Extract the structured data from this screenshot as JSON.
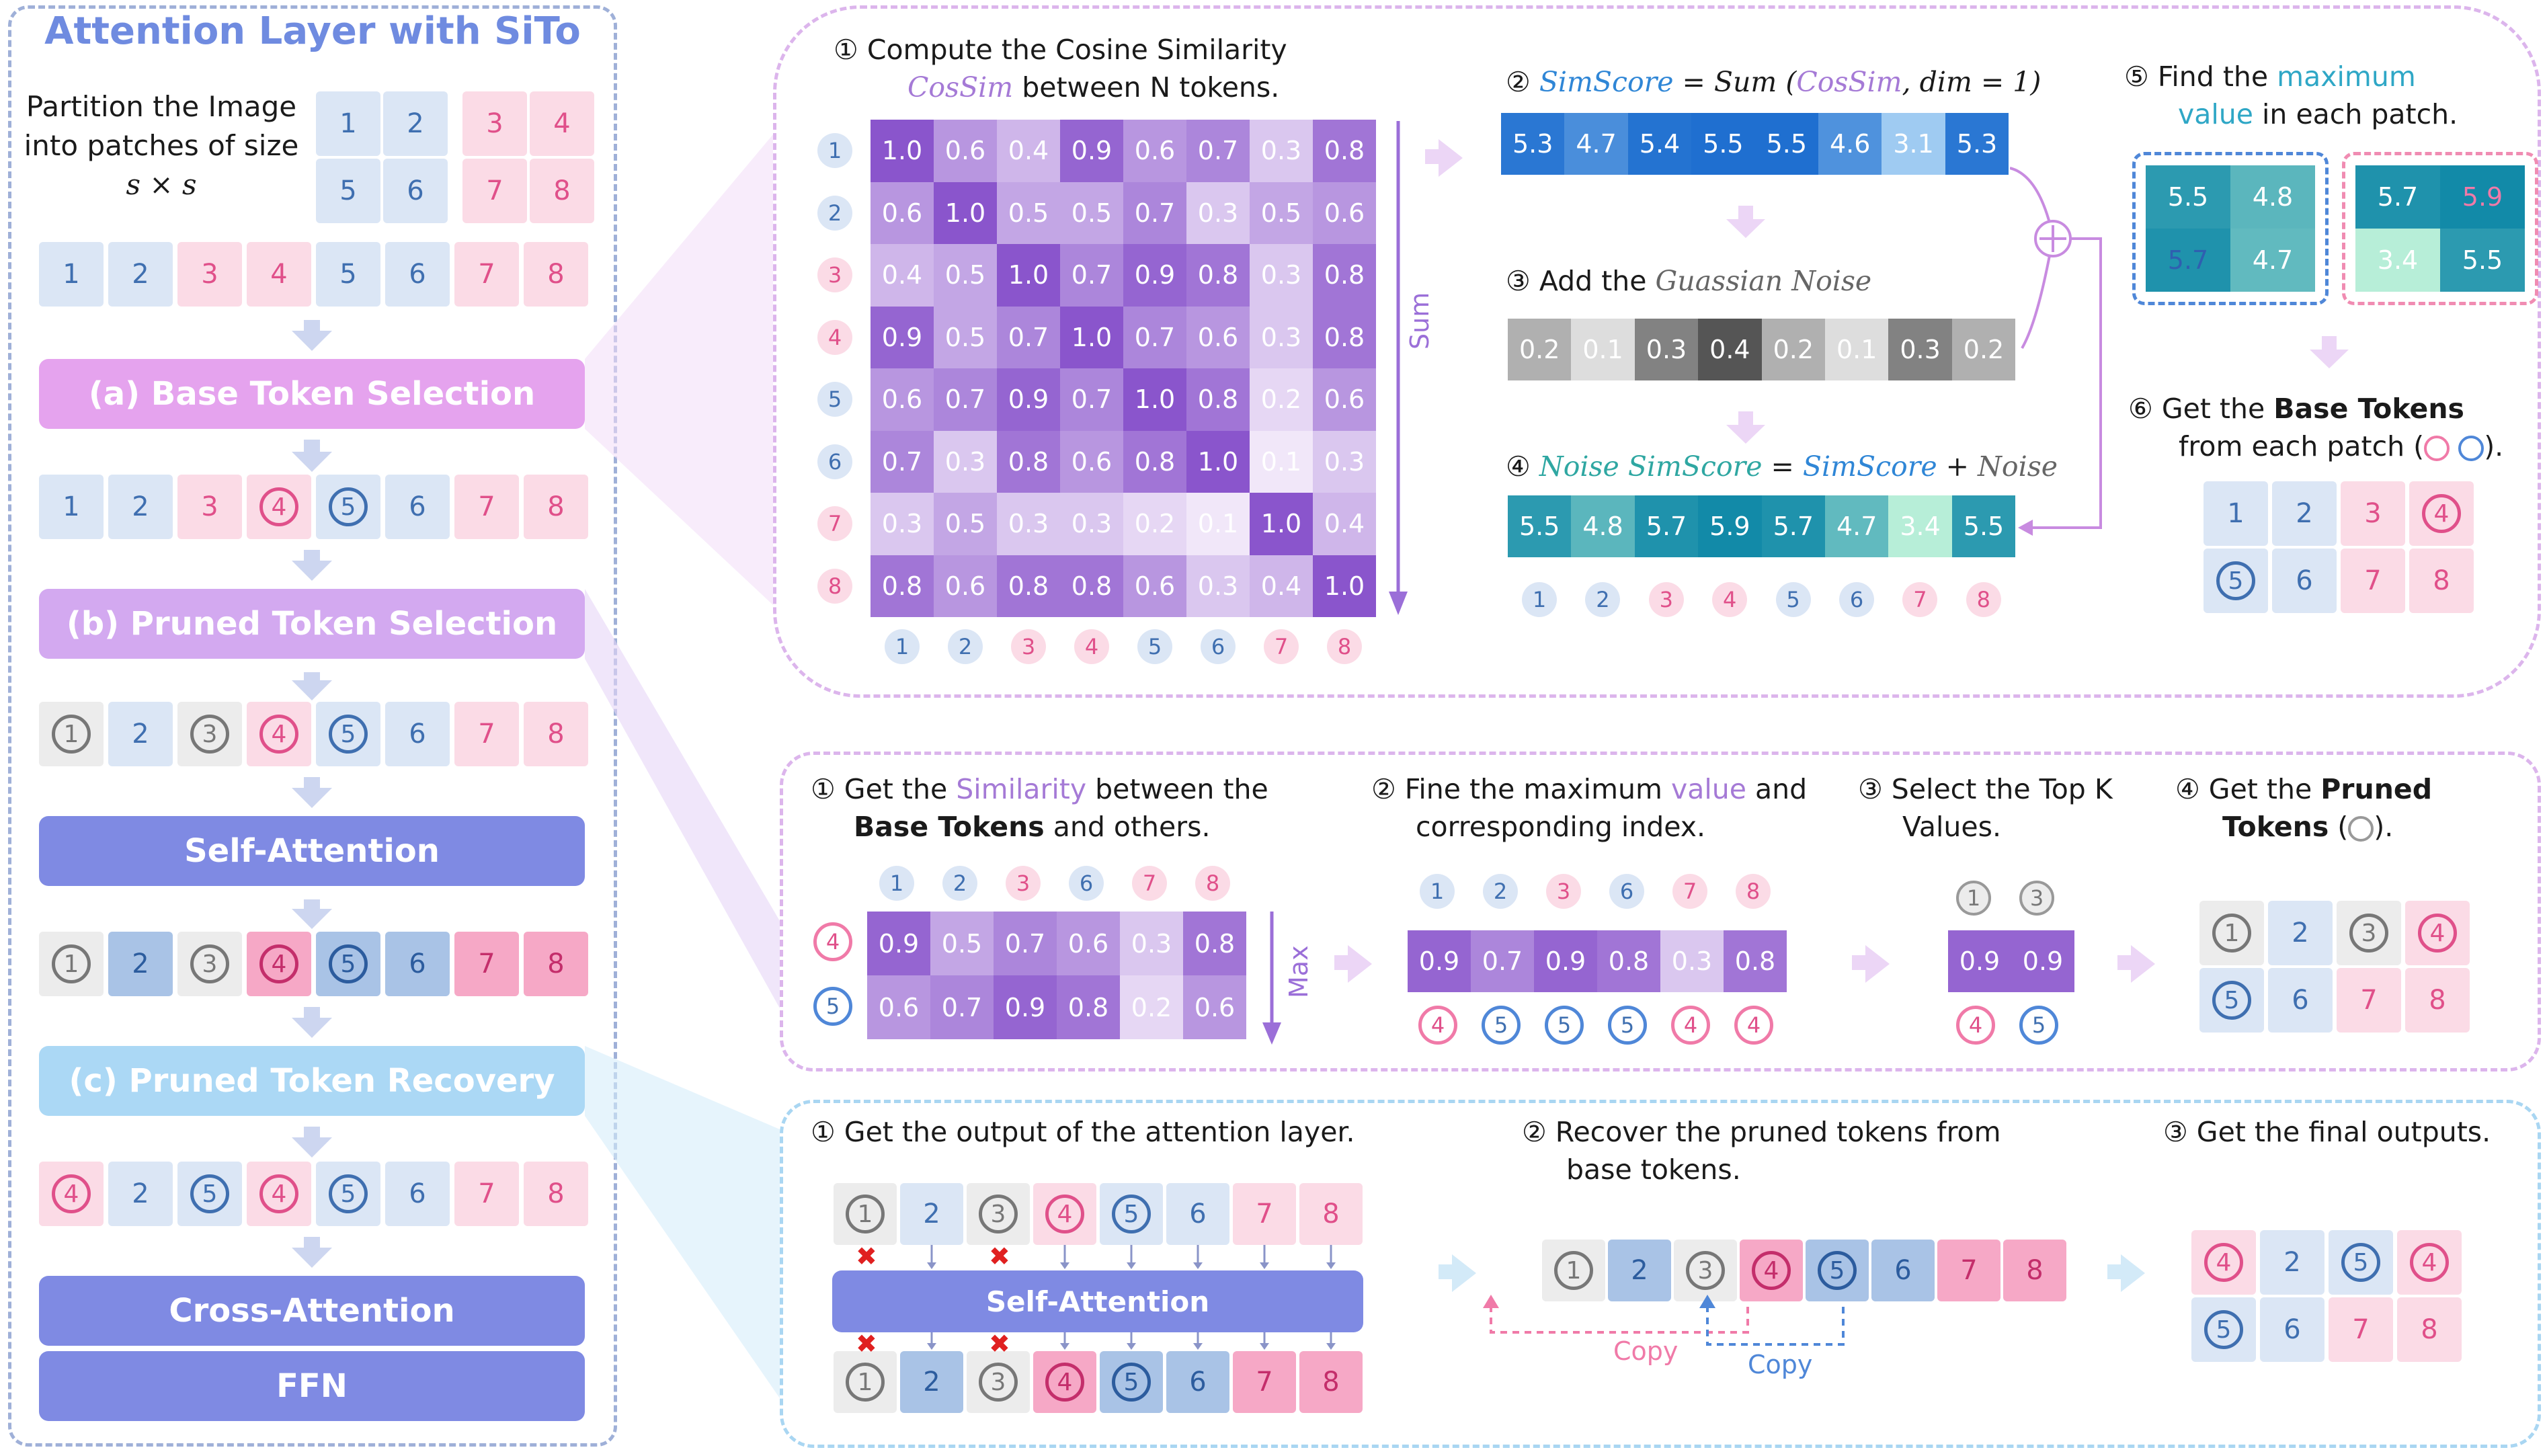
{
  "left": {
    "title": "Attention Layer with SiTo",
    "partition_line1": "Partition the Image",
    "partition_line2": "into patches of size",
    "partition_size": "s × s",
    "stage_a": "(a) Base Token Selection",
    "stage_b": "(b) Pruned Token Selection",
    "stage_self": "Self-Attention",
    "stage_c": "(c) Pruned Token Recovery",
    "stage_cross": "Cross-Attention",
    "stage_ffn": "FFN"
  },
  "tokens": [
    "1",
    "2",
    "3",
    "4",
    "5",
    "6",
    "7",
    "8"
  ],
  "base": {
    "step1_line1": "Compute the Cosine Similarity",
    "step1_cossim": "CosSim",
    "step1_line2": " between N tokens.",
    "sum_label": "Sum",
    "matrix": [
      [
        "1.0",
        "0.6",
        "0.4",
        "0.9",
        "0.6",
        "0.7",
        "0.3",
        "0.8"
      ],
      [
        "0.6",
        "1.0",
        "0.5",
        "0.5",
        "0.7",
        "0.3",
        "0.5",
        "0.6"
      ],
      [
        "0.4",
        "0.5",
        "1.0",
        "0.7",
        "0.9",
        "0.8",
        "0.3",
        "0.8"
      ],
      [
        "0.9",
        "0.5",
        "0.7",
        "1.0",
        "0.7",
        "0.6",
        "0.3",
        "0.8"
      ],
      [
        "0.6",
        "0.7",
        "0.9",
        "0.7",
        "1.0",
        "0.8",
        "0.2",
        "0.6"
      ],
      [
        "0.7",
        "0.3",
        "0.8",
        "0.6",
        "0.8",
        "1.0",
        "0.1",
        "0.3"
      ],
      [
        "0.3",
        "0.5",
        "0.3",
        "0.3",
        "0.2",
        "0.1",
        "1.0",
        "0.4"
      ],
      [
        "0.8",
        "0.6",
        "0.8",
        "0.8",
        "0.6",
        "0.3",
        "0.4",
        "1.0"
      ]
    ],
    "step2_simscore": "SimScore",
    "step2_eq": " = Sum (",
    "step2_cossim": "CosSim",
    "step2_tail": ", dim = 1)",
    "simscore": [
      "5.3",
      "4.7",
      "5.4",
      "5.5",
      "5.5",
      "4.6",
      "3.1",
      "5.3"
    ],
    "step3_text": "Add the ",
    "step3_noise": "Guassian Noise",
    "noise": [
      "0.2",
      "0.1",
      "0.3",
      "0.4",
      "0.2",
      "0.1",
      "0.3",
      "0.2"
    ],
    "step4_noise_sim": "Noise SimScore",
    "step4_eq": " = ",
    "step4_sim": "SimScore",
    "step4_plus": " + ",
    "step4_noise": "Noise",
    "noise_simscore": [
      "5.5",
      "4.8",
      "5.7",
      "5.9",
      "5.7",
      "4.7",
      "3.4",
      "5.5"
    ],
    "step5_line1a": "Find the ",
    "step5_max": "maximum",
    "step5_value": "value",
    "step5_line2b": " in each patch.",
    "patch_left": [
      "5.5",
      "4.8",
      "5.7",
      "4.7"
    ],
    "patch_right": [
      "5.7",
      "5.9",
      "3.4",
      "5.5"
    ],
    "step6_line1a": "Get the ",
    "step6_bold": "Base Tokens",
    "step6_line2": "from  each patch (",
    "step6_end": ").",
    "step_nums": [
      "①",
      "②",
      "③",
      "④",
      "⑤",
      "⑥"
    ]
  },
  "pruned": {
    "step1_a": "Get the ",
    "step1_sim": "Similarity",
    "step1_b": " between the",
    "step1_bold": "Base Tokens",
    "step1_c": " and others.",
    "cols": [
      "1",
      "2",
      "3",
      "6",
      "7",
      "8"
    ],
    "rows": [
      "4",
      "5"
    ],
    "matrix": [
      [
        "0.9",
        "0.5",
        "0.7",
        "0.6",
        "0.3",
        "0.8"
      ],
      [
        "0.6",
        "0.7",
        "0.9",
        "0.8",
        "0.2",
        "0.6"
      ]
    ],
    "max_label": "Max",
    "step2_a": "Fine the maximum ",
    "step2_value": "value",
    "step2_b": " and",
    "step2_line2": "corresponding index.",
    "max_values": [
      "0.9",
      "0.7",
      "0.9",
      "0.8",
      "0.3",
      "0.8"
    ],
    "max_index": [
      "4",
      "5",
      "5",
      "5",
      "4",
      "4"
    ],
    "step3_line1": "Select the Top K",
    "step3_line2": "Values.",
    "topk_cols": [
      "1",
      "3"
    ],
    "topk_values": [
      "0.9",
      "0.9"
    ],
    "topk_index": [
      "4",
      "5"
    ],
    "step4_a": "Get the ",
    "step4_bold1": "Pruned",
    "step4_bold2": "Tokens",
    "step4_end": ")."
  },
  "recovery": {
    "step1": "Get the output of the attention layer.",
    "self_attention": "Self-Attention",
    "step2_line1": "Recover the pruned tokens from",
    "step2_line2": "base tokens.",
    "copy1": "Copy",
    "copy2": "Copy",
    "step3": "Get the final outputs."
  },
  "colors": {
    "frame": "#7d8fc8",
    "stage_a": "#e5a3ee",
    "stage_b": "#d3a9f0",
    "stage_self": "#7f8ae3",
    "stage_c": "#abd8f5",
    "matrix_high": "#8e5bd0",
    "matrix_low": "#efe4f8"
  }
}
